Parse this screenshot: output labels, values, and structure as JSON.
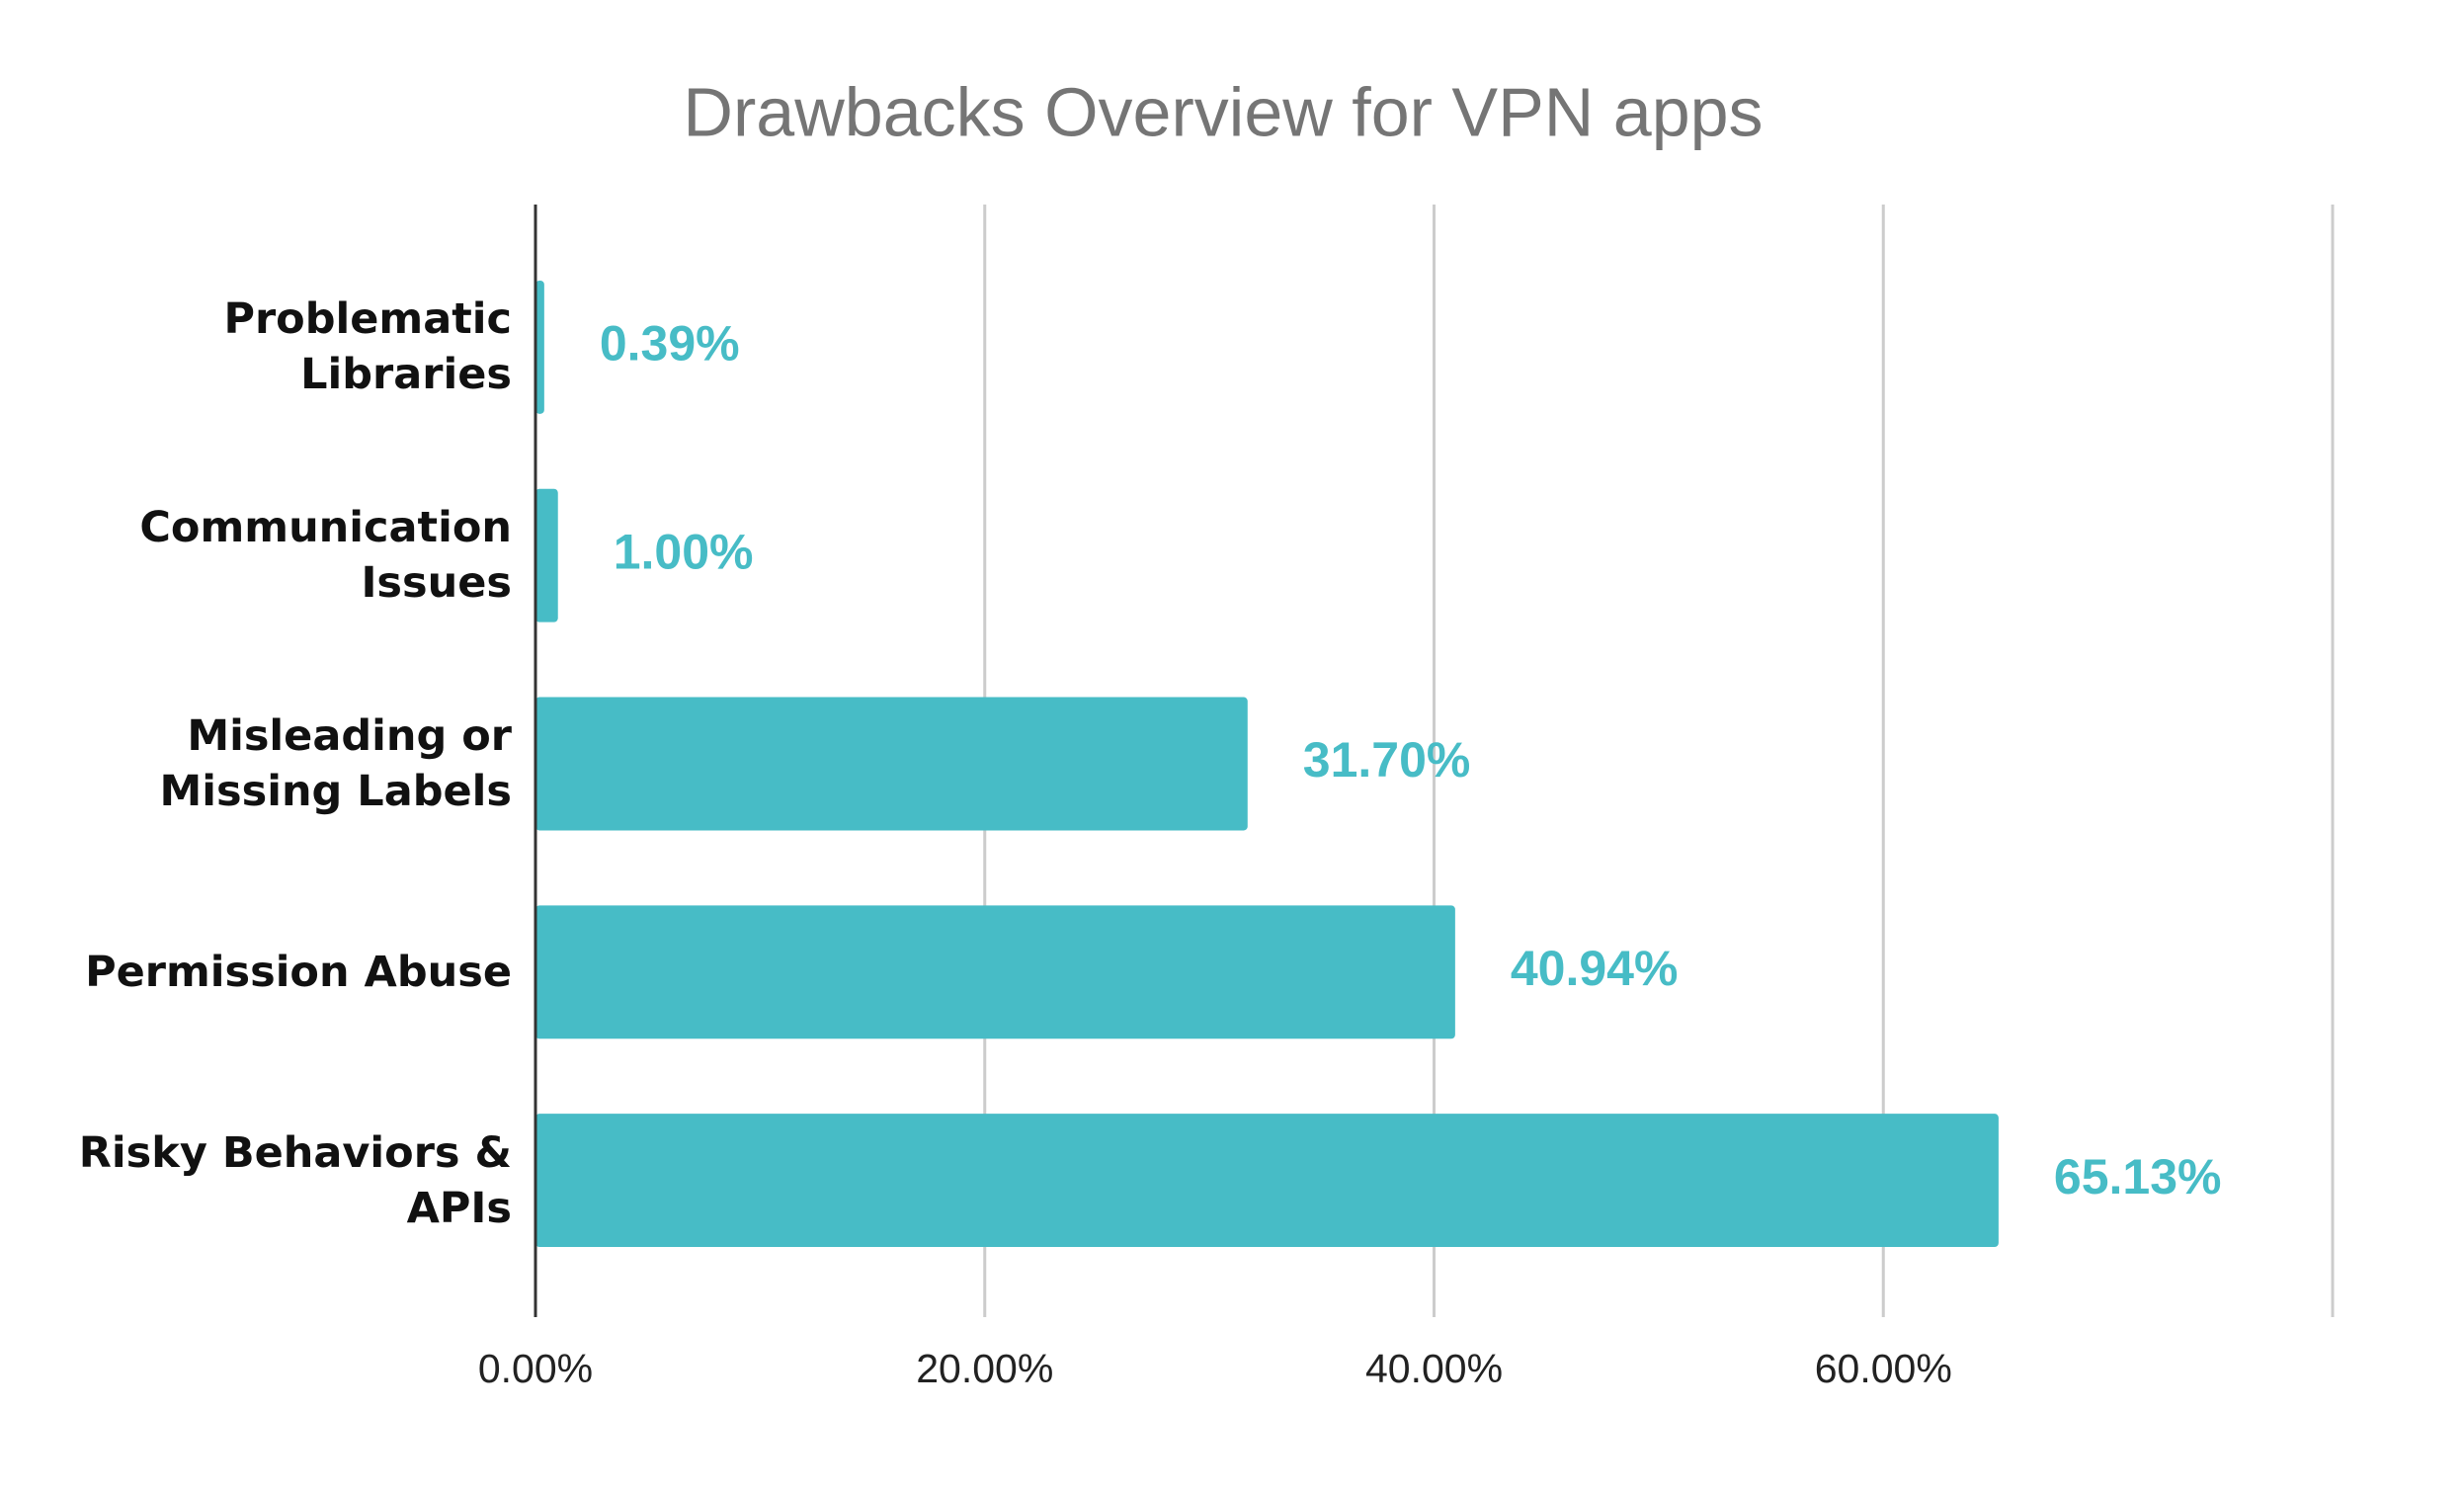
{
  "chart_data": {
    "type": "bar",
    "orientation": "horizontal",
    "title": "Drawbacks Overview for VPN apps",
    "categories": [
      "Problematic Libraries",
      "Communication Issues",
      "Misleading or Missing Labels",
      "Permission Abuse",
      "Risky Behaviors & APIs"
    ],
    "values": [
      0.39,
      1.0,
      31.7,
      40.94,
      65.13
    ],
    "value_labels": [
      "0.39%",
      "1.00%",
      "31.70%",
      "40.94%",
      "65.13%"
    ],
    "color": "#47bcc6",
    "xlim": [
      0,
      80
    ],
    "xticks": [
      {
        "value": 0,
        "label": "0.00%"
      },
      {
        "value": 20,
        "label": "20.00%"
      },
      {
        "value": 40,
        "label": "40.00%"
      },
      {
        "value": 60,
        "label": "60.00%"
      }
    ],
    "grid": true
  }
}
